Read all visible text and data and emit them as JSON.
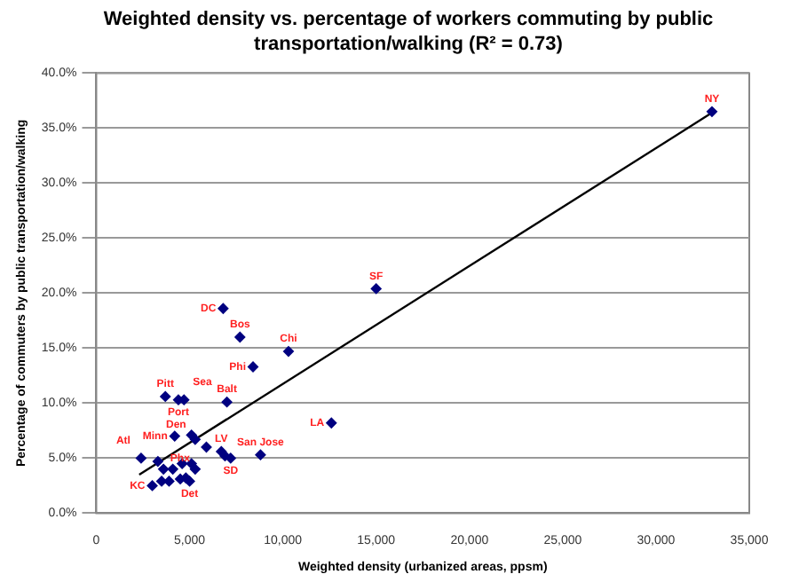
{
  "chart_data": {
    "type": "scatter",
    "title": "Weighted density vs. percentage of workers commuting by public transportation/walking (R² = 0.73)",
    "xlabel": "Weighted density (urbanized areas, ppsm)",
    "ylabel": "Percentage of commuters by public transportation/walking",
    "xlim": [
      0,
      35000
    ],
    "xticks": [
      0,
      {
        "value": 5000,
        "label": "5,000"
      },
      {
        "value": 10000,
        "label": "10,000"
      },
      {
        "value": 15000,
        "label": "15,000"
      },
      {
        "value": 20000,
        "label": "20,000"
      },
      {
        "value": 25000,
        "label": "25,000"
      },
      {
        "value": 30000,
        "label": "30,000"
      },
      {
        "value": 35000,
        "label": "35,000"
      }
    ],
    "ylim": [
      0,
      40
    ],
    "yticks": [
      {
        "value": 0,
        "label": "0.0%"
      },
      {
        "value": 5,
        "label": "5.0%"
      },
      {
        "value": 10,
        "label": "10.0%"
      },
      {
        "value": 15,
        "label": "15.0%"
      },
      {
        "value": 20,
        "label": "20.0%"
      },
      {
        "value": 25,
        "label": "25.0%"
      },
      {
        "value": 30,
        "label": "30.0%"
      },
      {
        "value": 35,
        "label": "35.0%"
      },
      {
        "value": 40,
        "label": "40.0%"
      }
    ],
    "grid": "y",
    "marker": "diamond",
    "series": [
      {
        "type": "scatter",
        "color": "#000080",
        "x": [
          33000,
          15000,
          6800,
          7700,
          10300,
          8400,
          3700,
          4400,
          4700,
          7000,
          12600,
          4200,
          5100,
          5300,
          5900,
          6700,
          6900,
          7200,
          8800,
          2400,
          3300,
          3600,
          4100,
          4600,
          5100,
          5300,
          3500,
          3900,
          3000,
          4500,
          4800,
          5000
        ],
        "values": [
          36.5,
          20.4,
          18.6,
          16.0,
          14.7,
          13.3,
          10.6,
          10.3,
          10.3,
          10.1,
          8.2,
          7.0,
          7.1,
          6.7,
          6.0,
          5.6,
          5.2,
          5.0,
          5.3,
          5.0,
          4.7,
          4.0,
          4.0,
          4.5,
          4.5,
          4.0,
          2.9,
          2.9,
          2.5,
          3.1,
          3.2,
          2.9
        ],
        "value_labels": [
          "NY",
          "SF",
          "DC",
          "Bos",
          "Chi",
          "Phi",
          "Pitt",
          "Port",
          "Sea",
          "Balt",
          "LA",
          "Minn",
          "Den",
          null,
          null,
          "LV",
          null,
          "SD",
          "San Jose",
          "Atl",
          null,
          null,
          null,
          null,
          null,
          "Phx",
          null,
          null,
          "KC",
          null,
          null,
          "Det"
        ]
      },
      {
        "type": "line",
        "color": "#000000",
        "x": [
          2300,
          33000
        ],
        "values": [
          3.5,
          36.4
        ],
        "marker": "none"
      }
    ]
  }
}
